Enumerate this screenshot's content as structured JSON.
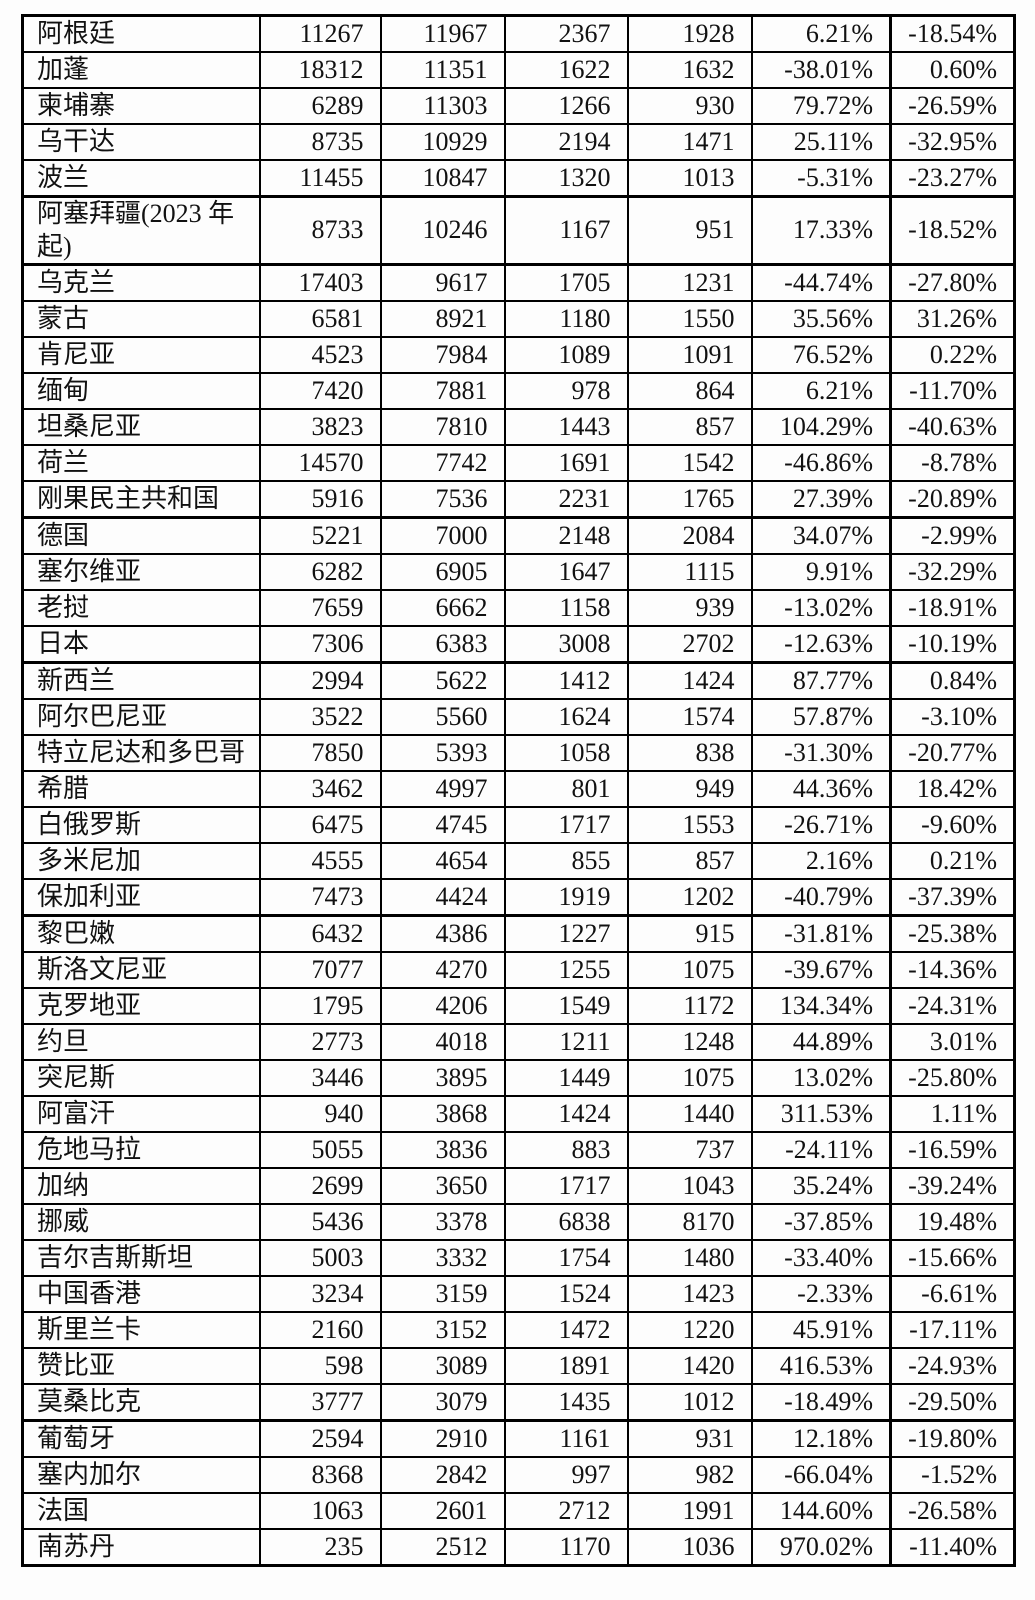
{
  "page": {
    "background_color": "#fdfdfd",
    "border_color": "#000000",
    "text_color": "#111111"
  },
  "table": {
    "description_visible_header": "",
    "rows": [
      [
        "阿根廷",
        "11267",
        "11967",
        "2367",
        "1928",
        "6.21%",
        "-18.54%"
      ],
      [
        "加蓬",
        "18312",
        "11351",
        "1622",
        "1632",
        "-38.01%",
        "0.60%"
      ],
      [
        "柬埔寨",
        "6289",
        "11303",
        "1266",
        "930",
        "79.72%",
        "-26.59%"
      ],
      [
        "乌干达",
        "8735",
        "10929",
        "2194",
        "1471",
        "25.11%",
        "-32.95%"
      ],
      [
        "波兰",
        "11455",
        "10847",
        "1320",
        "1013",
        "-5.31%",
        "-23.27%"
      ],
      [
        "阿塞拜疆(2023 年起)",
        "8733",
        "10246",
        "1167",
        "951",
        "17.33%",
        "-18.52%"
      ],
      [
        "乌克兰",
        "17403",
        "9617",
        "1705",
        "1231",
        "-44.74%",
        "-27.80%"
      ],
      [
        "蒙古",
        "6581",
        "8921",
        "1180",
        "1550",
        "35.56%",
        "31.26%"
      ],
      [
        "肯尼亚",
        "4523",
        "7984",
        "1089",
        "1091",
        "76.52%",
        "0.22%"
      ],
      [
        "缅甸",
        "7420",
        "7881",
        "978",
        "864",
        "6.21%",
        "-11.70%"
      ],
      [
        "坦桑尼亚",
        "3823",
        "7810",
        "1443",
        "857",
        "104.29%",
        "-40.63%"
      ],
      [
        "荷兰",
        "14570",
        "7742",
        "1691",
        "1542",
        "-46.86%",
        "-8.78%"
      ],
      [
        "刚果民主共和国",
        "5916",
        "7536",
        "2231",
        "1765",
        "27.39%",
        "-20.89%"
      ],
      [
        "德国",
        "5221",
        "7000",
        "2148",
        "2084",
        "34.07%",
        "-2.99%"
      ],
      [
        "塞尔维亚",
        "6282",
        "6905",
        "1647",
        "1115",
        "9.91%",
        "-32.29%"
      ],
      [
        "老挝",
        "7659",
        "6662",
        "1158",
        "939",
        "-13.02%",
        "-18.91%"
      ],
      [
        "日本",
        "7306",
        "6383",
        "3008",
        "2702",
        "-12.63%",
        "-10.19%"
      ],
      [
        "新西兰",
        "2994",
        "5622",
        "1412",
        "1424",
        "87.77%",
        "0.84%"
      ],
      [
        "阿尔巴尼亚",
        "3522",
        "5560",
        "1624",
        "1574",
        "57.87%",
        "-3.10%"
      ],
      [
        "特立尼达和多巴哥",
        "7850",
        "5393",
        "1058",
        "838",
        "-31.30%",
        "-20.77%"
      ],
      [
        "希腊",
        "3462",
        "4997",
        "801",
        "949",
        "44.36%",
        "18.42%"
      ],
      [
        "白俄罗斯",
        "6475",
        "4745",
        "1717",
        "1553",
        "-26.71%",
        "-9.60%"
      ],
      [
        "多米尼加",
        "4555",
        "4654",
        "855",
        "857",
        "2.16%",
        "0.21%"
      ],
      [
        "保加利亚",
        "7473",
        "4424",
        "1919",
        "1202",
        "-40.79%",
        "-37.39%"
      ],
      [
        "黎巴嫩",
        "6432",
        "4386",
        "1227",
        "915",
        "-31.81%",
        "-25.38%"
      ],
      [
        "斯洛文尼亚",
        "7077",
        "4270",
        "1255",
        "1075",
        "-39.67%",
        "-14.36%"
      ],
      [
        "克罗地亚",
        "1795",
        "4206",
        "1549",
        "1172",
        "134.34%",
        "-24.31%"
      ],
      [
        "约旦",
        "2773",
        "4018",
        "1211",
        "1248",
        "44.89%",
        "3.01%"
      ],
      [
        "突尼斯",
        "3446",
        "3895",
        "1449",
        "1075",
        "13.02%",
        "-25.80%"
      ],
      [
        "阿富汗",
        "940",
        "3868",
        "1424",
        "1440",
        "311.53%",
        "1.11%"
      ],
      [
        "危地马拉",
        "5055",
        "3836",
        "883",
        "737",
        "-24.11%",
        "-16.59%"
      ],
      [
        "加纳",
        "2699",
        "3650",
        "1717",
        "1043",
        "35.24%",
        "-39.24%"
      ],
      [
        "挪威",
        "5436",
        "3378",
        "6838",
        "8170",
        "-37.85%",
        "19.48%"
      ],
      [
        "吉尔吉斯斯坦",
        "5003",
        "3332",
        "1754",
        "1480",
        "-33.40%",
        "-15.66%"
      ],
      [
        "中国香港",
        "3234",
        "3159",
        "1524",
        "1423",
        "-2.33%",
        "-6.61%"
      ],
      [
        "斯里兰卡",
        "2160",
        "3152",
        "1472",
        "1220",
        "45.91%",
        "-17.11%"
      ],
      [
        "赞比亚",
        "598",
        "3089",
        "1891",
        "1420",
        "416.53%",
        "-24.93%"
      ],
      [
        "莫桑比克",
        "3777",
        "3079",
        "1435",
        "1012",
        "-18.49%",
        "-29.50%"
      ],
      [
        "葡萄牙",
        "2594",
        "2910",
        "1161",
        "931",
        "12.18%",
        "-19.80%"
      ],
      [
        "塞内加尔",
        "8368",
        "2842",
        "997",
        "982",
        "-66.04%",
        "-1.52%"
      ],
      [
        "法国",
        "1063",
        "2601",
        "2712",
        "1991",
        "144.60%",
        "-26.58%"
      ],
      [
        "南苏丹",
        "235",
        "2512",
        "1170",
        "1036",
        "970.02%",
        "-11.40%"
      ]
    ]
  },
  "chart_data": {
    "type": "table",
    "title": "",
    "columns_visible": [
      "country-name",
      "value-1",
      "value-2",
      "value-3",
      "value-4",
      "percent-change-1",
      "percent-change-2"
    ],
    "note": "cropped table page; no header row visible in image"
  }
}
